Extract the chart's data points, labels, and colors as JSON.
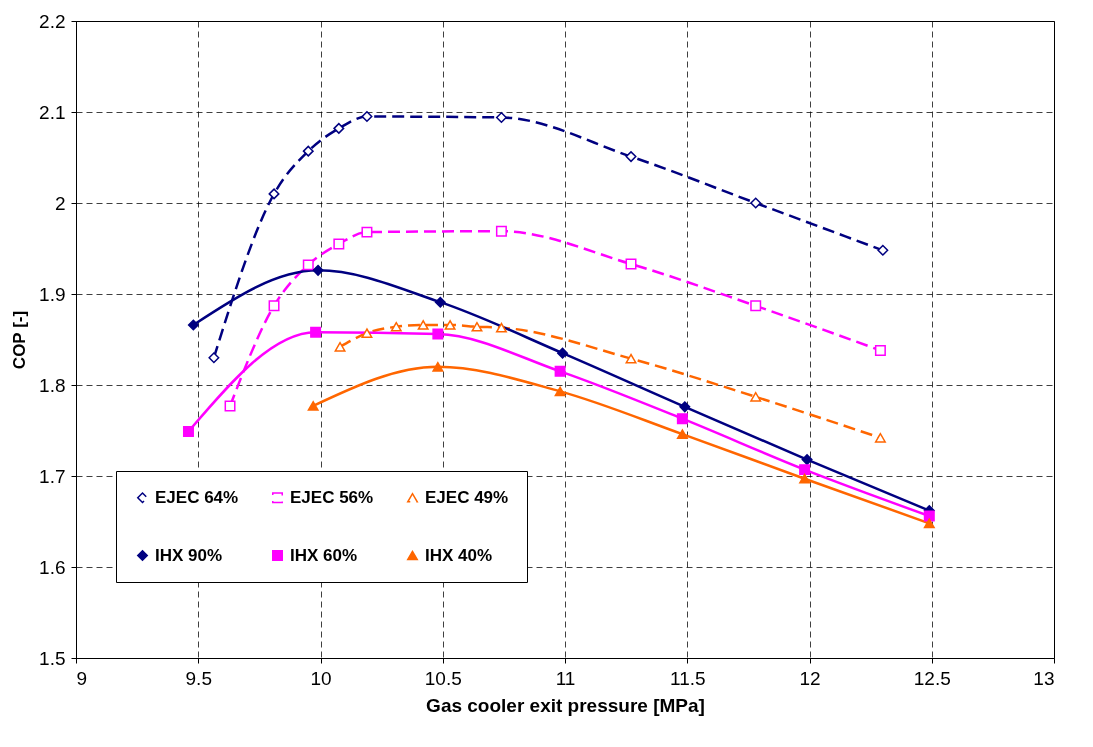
{
  "chart_data": {
    "type": "line",
    "xlabel": "Gas cooler exit pressure [MPa]",
    "ylabel": "COP [-]",
    "xlim": [
      9,
      13
    ],
    "xticks": [
      9,
      9.5,
      10,
      10.5,
      11,
      11.5,
      12,
      12.5,
      13
    ],
    "ylim": [
      1.5,
      2.2
    ],
    "yticks": [
      1.5,
      1.6,
      1.7,
      1.8,
      1.9,
      2,
      2.1,
      2.2
    ],
    "grid": true,
    "legend": "bottom left",
    "series": [
      {
        "name": "EJEC 64%",
        "color": "#000080",
        "line_style": "dashed",
        "marker": "diamond",
        "x": [
          9.564,
          9.81,
          9.95,
          10.075,
          10.19,
          10.74,
          11.27,
          11.78,
          12.3
        ],
        "values": [
          1.83,
          2.01,
          2.057,
          2.082,
          2.095,
          2.094,
          2.051,
          2.0,
          1.948
        ]
      },
      {
        "name": "EJEC 56%",
        "color": "#ff00ff",
        "line_style": "dashed",
        "marker": "square",
        "x": [
          9.63,
          9.81,
          9.95,
          10.075,
          10.19,
          10.74,
          11.27,
          11.78,
          12.29
        ],
        "values": [
          1.777,
          1.887,
          1.932,
          1.955,
          1.968,
          1.969,
          1.933,
          1.887,
          1.838
        ]
      },
      {
        "name": "EJEC 49%",
        "color": "#ff6600",
        "line_style": "dashed",
        "marker": "triangle",
        "x": [
          10.08,
          10.19,
          10.31,
          10.42,
          10.53,
          10.64,
          10.74,
          11.27,
          11.78,
          12.29
        ],
        "values": [
          1.842,
          1.857,
          1.864,
          1.866,
          1.866,
          1.864,
          1.863,
          1.829,
          1.787,
          1.742
        ]
      },
      {
        "name": "IHX 90%",
        "color": "#000080",
        "line_style": "solid",
        "marker": "diamond",
        "x": [
          9.48,
          9.99,
          10.49,
          10.99,
          11.49,
          11.99,
          12.49
        ],
        "values": [
          1.866,
          1.926,
          1.891,
          1.835,
          1.776,
          1.718,
          1.662
        ]
      },
      {
        "name": "IHX 60%",
        "color": "#ff00ff",
        "line_style": "solid",
        "marker": "square",
        "x": [
          9.46,
          9.98,
          10.48,
          10.98,
          11.48,
          11.98,
          12.49
        ],
        "values": [
          1.749,
          1.858,
          1.856,
          1.815,
          1.763,
          1.707,
          1.656
        ]
      },
      {
        "name": "IHX 40%",
        "color": "#ff6600",
        "line_style": "solid",
        "marker": "triangle",
        "x": [
          9.97,
          10.48,
          10.98,
          11.48,
          11.98,
          12.49
        ],
        "values": [
          1.777,
          1.82,
          1.793,
          1.746,
          1.697,
          1.648
        ]
      }
    ]
  }
}
